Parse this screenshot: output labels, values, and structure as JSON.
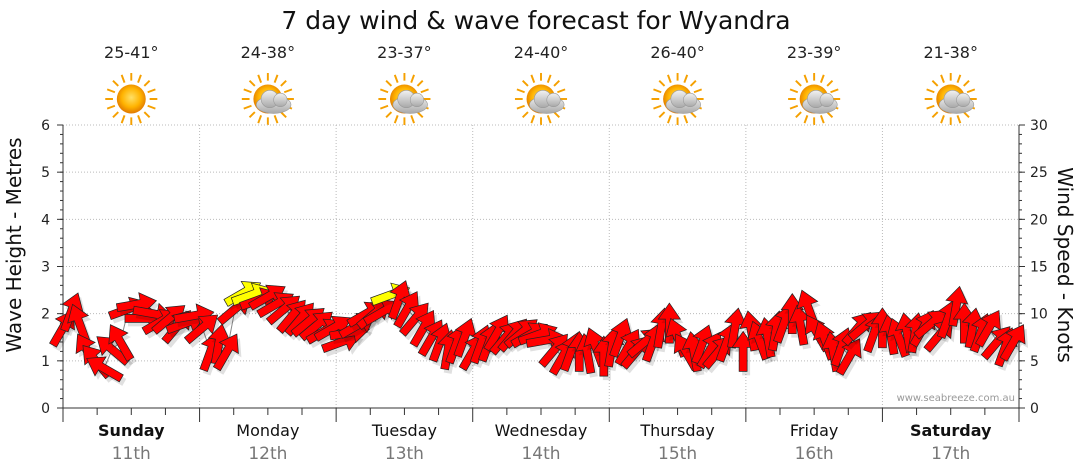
{
  "chart_data": {
    "type": "line",
    "title": "7 day wind & wave forecast for Wyandra",
    "y_left_label": "Wave Height - Metres",
    "y_right_label": "Wind Speed - Knots",
    "y_left_range": [
      0,
      6
    ],
    "y_left_ticks": [
      "0",
      "1",
      "2",
      "3",
      "4",
      "5",
      "6"
    ],
    "y_right_range": [
      0,
      30
    ],
    "y_right_ticks": [
      "0",
      "5",
      "10",
      "15",
      "20",
      "25",
      "30"
    ],
    "grid": true,
    "credit": "www.seabreeze.com.au",
    "days": [
      {
        "day": "Sunday",
        "date": "11th",
        "temp": "25-41°",
        "weather": "sunny-icon",
        "bold": true
      },
      {
        "day": "Monday",
        "date": "12th",
        "temp": "24-38°",
        "weather": "partly-cloudy-icon",
        "bold": false
      },
      {
        "day": "Tuesday",
        "date": "13th",
        "temp": "23-37°",
        "weather": "partly-cloudy-icon",
        "bold": false
      },
      {
        "day": "Wednesday",
        "date": "14th",
        "temp": "24-40°",
        "weather": "partly-cloudy-icon",
        "bold": false
      },
      {
        "day": "Thursday",
        "date": "15th",
        "temp": "26-40°",
        "weather": "partly-cloudy-icon",
        "bold": false
      },
      {
        "day": "Friday",
        "date": "16th",
        "temp": "23-39°",
        "weather": "partly-cloudy-icon",
        "bold": false
      },
      {
        "day": "Saturday",
        "date": "17th",
        "temp": "21-38°",
        "weather": "partly-cloudy-icon",
        "bold": true
      }
    ],
    "wind_series": {
      "name": "Wind",
      "colors": {
        "normal": "#ff0000",
        "strong": "#ffff00",
        "outline": "#222222"
      },
      "strong_threshold_knots": 12,
      "time_days": [
        0.0,
        0.06,
        0.12,
        0.18,
        0.24,
        0.3,
        0.36,
        0.42,
        0.48,
        0.54,
        0.6,
        0.66,
        0.72,
        0.78,
        0.84,
        0.9,
        0.96,
        1.02,
        1.08,
        1.14,
        1.2,
        1.26,
        1.32,
        1.38,
        1.44,
        1.5,
        1.56,
        1.62,
        1.68,
        1.74,
        1.8,
        1.86,
        1.92,
        1.98,
        2.04,
        2.1,
        2.16,
        2.22,
        2.28,
        2.34,
        2.4,
        2.46,
        2.52,
        2.58,
        2.64,
        2.7,
        2.76,
        2.82,
        2.88,
        2.94,
        3.0,
        3.06,
        3.12,
        3.18,
        3.24,
        3.3,
        3.36,
        3.42,
        3.48,
        3.54,
        3.6,
        3.66,
        3.72,
        3.78,
        3.84,
        3.9,
        3.96,
        4.02,
        4.08,
        4.14,
        4.2,
        4.26,
        4.32,
        4.38,
        4.44,
        4.5,
        4.56,
        4.62,
        4.68,
        4.74,
        4.8,
        4.86,
        4.92,
        4.98,
        5.04,
        5.1,
        5.16,
        5.22,
        5.28,
        5.34,
        5.4,
        5.46,
        5.52,
        5.58,
        5.64,
        5.7,
        5.76,
        5.82,
        5.88,
        5.94,
        6.0,
        6.06,
        6.12,
        6.18,
        6.24,
        6.3,
        6.36,
        6.42,
        6.48,
        6.54,
        6.6,
        6.66,
        6.72,
        6.78,
        6.84,
        6.9,
        6.96
      ],
      "speed_knots": [
        8.5,
        10.2,
        9.0,
        6.0,
        5.0,
        4.2,
        6.2,
        7.0,
        10.5,
        11.0,
        9.5,
        10.0,
        9.2,
        9.5,
        8.7,
        9.0,
        9.8,
        8.5,
        6.0,
        6.8,
        6.0,
        10.5,
        12.2,
        12.0,
        11.5,
        11.8,
        11.0,
        10.5,
        9.8,
        9.5,
        9.2,
        8.8,
        8.2,
        8.5,
        7.0,
        8.0,
        8.8,
        10.0,
        10.0,
        10.2,
        12.0,
        11.5,
        10.5,
        9.5,
        8.5,
        7.5,
        7.0,
        6.2,
        6.8,
        7.5,
        6.0,
        6.8,
        7.0,
        8.0,
        7.5,
        7.8,
        8.0,
        7.8,
        7.8,
        7.2,
        6.2,
        5.5,
        6.0,
        6.0,
        5.8,
        6.5,
        5.5,
        6.5,
        7.5,
        6.5,
        6.0,
        7.0,
        7.0,
        8.5,
        9.0,
        7.5,
        6.0,
        6.0,
        6.8,
        6.2,
        6.0,
        7.0,
        8.5,
        6.0,
        8.2,
        7.2,
        7.5,
        8.2,
        9.0,
        10.0,
        8.8,
        10.5,
        8.0,
        7.2,
        6.0,
        6.5,
        5.5,
        8.5,
        8.8,
        8.0,
        8.5,
        7.8,
        7.5,
        8.0,
        8.0,
        8.5,
        9.0,
        7.8,
        9.5,
        10.8,
        9.0,
        8.5,
        8.0,
        8.5,
        7.0,
        6.5,
        7.0
      ],
      "direction_deg": [
        210,
        200,
        160,
        150,
        140,
        120,
        130,
        150,
        250,
        260,
        270,
        280,
        240,
        230,
        220,
        250,
        260,
        230,
        200,
        190,
        210,
        230,
        240,
        250,
        250,
        240,
        240,
        230,
        220,
        220,
        230,
        230,
        240,
        240,
        250,
        260,
        240,
        240,
        230,
        240,
        250,
        200,
        210,
        220,
        210,
        210,
        200,
        190,
        200,
        200,
        210,
        200,
        200,
        210,
        220,
        220,
        230,
        240,
        250,
        260,
        220,
        210,
        200,
        180,
        170,
        160,
        180,
        190,
        200,
        210,
        220,
        230,
        200,
        190,
        180,
        160,
        150,
        170,
        200,
        210,
        220,
        200,
        190,
        180,
        170,
        160,
        170,
        190,
        200,
        180,
        170,
        160,
        150,
        160,
        170,
        200,
        210,
        220,
        230,
        200,
        180,
        170,
        160,
        170,
        190,
        210,
        230,
        220,
        200,
        190,
        180,
        190,
        200,
        210,
        220,
        200,
        210
      ]
    }
  }
}
